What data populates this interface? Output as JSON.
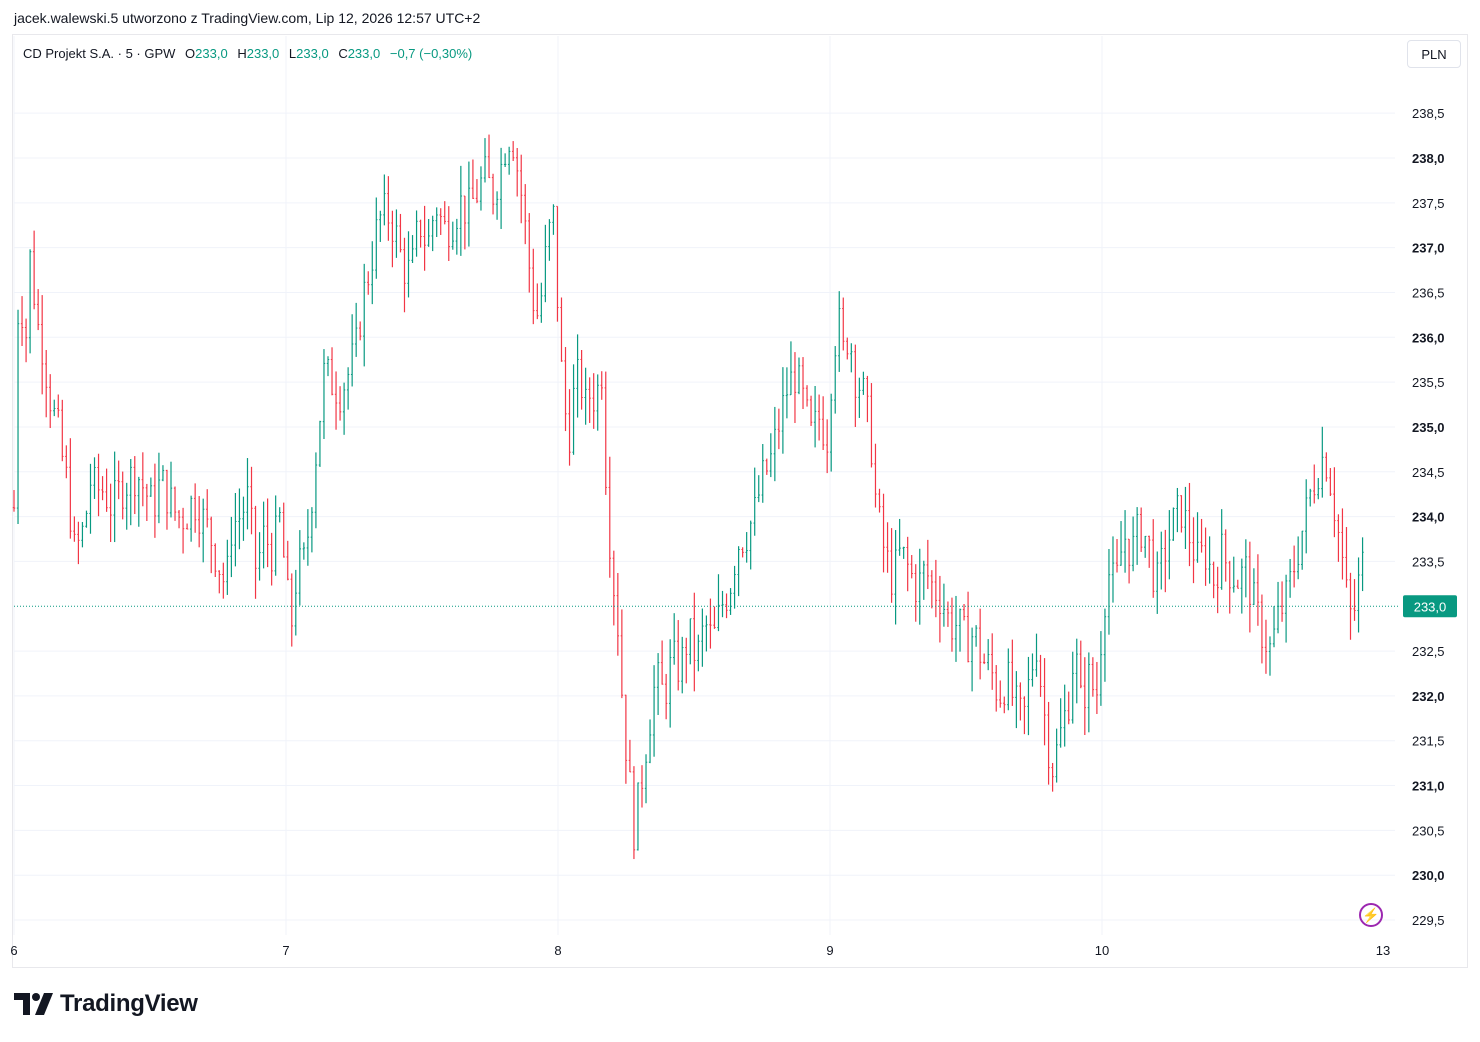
{
  "caption": "jacek.walewski.5 utworzono z TradingView.com, Lip 12, 2026 12:57 UTC+2",
  "legend": {
    "symbol": "CD Projekt S.A. · 5 · GPW",
    "o_label": "O",
    "o_value": "233,0",
    "h_label": "H",
    "h_value": "233,0",
    "l_label": "L",
    "l_value": "233,0",
    "c_label": "C",
    "c_value": "233,0",
    "change": "−0,7 (−0,30%)"
  },
  "currency": "PLN",
  "last_price_label": "233,0",
  "brand": "TradingView",
  "colors": {
    "up": "#089981",
    "down": "#f23645",
    "accent_green": "#089981",
    "grid": "#f0f3fa",
    "flash": "#9c27b0"
  },
  "icons": {
    "flash": "lightning-icon",
    "logo": "tradingview-logo-icon"
  },
  "chart_data": {
    "type": "ohlc",
    "interval": "5",
    "y_axis": {
      "range": [
        229.5,
        238.5
      ],
      "ticks": [
        {
          "v": 238.5,
          "label": "238,5",
          "bold": false
        },
        {
          "v": 238.0,
          "label": "238,0",
          "bold": true
        },
        {
          "v": 237.5,
          "label": "237,5",
          "bold": false
        },
        {
          "v": 237.0,
          "label": "237,0",
          "bold": true
        },
        {
          "v": 236.5,
          "label": "236,5",
          "bold": false
        },
        {
          "v": 236.0,
          "label": "236,0",
          "bold": true
        },
        {
          "v": 235.5,
          "label": "235,5",
          "bold": false
        },
        {
          "v": 235.0,
          "label": "235,0",
          "bold": true
        },
        {
          "v": 234.5,
          "label": "234,5",
          "bold": false
        },
        {
          "v": 234.0,
          "label": "234,0",
          "bold": true
        },
        {
          "v": 233.5,
          "label": "233,5",
          "bold": false
        },
        {
          "v": 232.5,
          "label": "232,5",
          "bold": false
        },
        {
          "v": 232.0,
          "label": "232,0",
          "bold": true
        },
        {
          "v": 231.5,
          "label": "231,5",
          "bold": false
        },
        {
          "v": 231.0,
          "label": "231,0",
          "bold": true
        },
        {
          "v": 230.5,
          "label": "230,5",
          "bold": false
        },
        {
          "v": 230.0,
          "label": "230,0",
          "bold": true
        },
        {
          "v": 229.5,
          "label": "229,5",
          "bold": false
        }
      ]
    },
    "x_axis": {
      "ticks": [
        {
          "t": 0,
          "label": "6"
        },
        {
          "t": 1,
          "label": "7"
        },
        {
          "t": 2,
          "label": "8"
        },
        {
          "t": 3,
          "label": "9"
        },
        {
          "t": 4,
          "label": "10"
        },
        {
          "t": 5,
          "label": "13"
        }
      ]
    },
    "last_close": 233.0,
    "path": [
      [
        0.0,
        234.1
      ],
      [
        0.01,
        235.8
      ],
      [
        0.02,
        236.8
      ],
      [
        0.03,
        236.3
      ],
      [
        0.04,
        235.6
      ],
      [
        0.05,
        236.6
      ],
      [
        0.06,
        236.9
      ],
      [
        0.07,
        236.7
      ],
      [
        0.08,
        236.2
      ],
      [
        0.1,
        236.0
      ],
      [
        0.12,
        235.6
      ],
      [
        0.14,
        235.2
      ],
      [
        0.16,
        235.0
      ],
      [
        0.18,
        234.6
      ],
      [
        0.2,
        234.3
      ],
      [
        0.22,
        233.6
      ],
      [
        0.24,
        233.7
      ],
      [
        0.26,
        233.9
      ],
      [
        0.28,
        234.4
      ],
      [
        0.3,
        234.3
      ],
      [
        0.33,
        234.3
      ],
      [
        0.36,
        234.1
      ],
      [
        0.39,
        234.3
      ],
      [
        0.42,
        234.4
      ],
      [
        0.45,
        234.5
      ],
      [
        0.48,
        234.3
      ],
      [
        0.51,
        234.1
      ],
      [
        0.54,
        234.4
      ],
      [
        0.57,
        234.2
      ],
      [
        0.6,
        234.0
      ],
      [
        0.63,
        234.0
      ],
      [
        0.66,
        234.2
      ],
      [
        0.69,
        234.0
      ],
      [
        0.72,
        233.8
      ],
      [
        0.75,
        233.5
      ],
      [
        0.78,
        233.2
      ],
      [
        0.8,
        233.9
      ],
      [
        0.83,
        234.0
      ],
      [
        0.86,
        234.2
      ],
      [
        0.89,
        233.4
      ],
      [
        0.92,
        233.8
      ],
      [
        0.95,
        233.6
      ],
      [
        0.98,
        234.0
      ],
      [
        1.0,
        233.2
      ],
      [
        1.02,
        232.8
      ],
      [
        1.04,
        233.4
      ],
      [
        1.07,
        233.5
      ],
      [
        1.1,
        234.4
      ],
      [
        1.12,
        235.0
      ],
      [
        1.14,
        235.6
      ],
      [
        1.17,
        235.5
      ],
      [
        1.2,
        235.4
      ],
      [
        1.23,
        235.6
      ],
      [
        1.26,
        235.9
      ],
      [
        1.28,
        236.4
      ],
      [
        1.31,
        236.8
      ],
      [
        1.34,
        237.3
      ],
      [
        1.37,
        237.4
      ],
      [
        1.4,
        237.2
      ],
      [
        1.43,
        236.8
      ],
      [
        1.46,
        236.7
      ],
      [
        1.49,
        237.3
      ],
      [
        1.52,
        237.0
      ],
      [
        1.55,
        237.5
      ],
      [
        1.58,
        237.2
      ],
      [
        1.61,
        237.3
      ],
      [
        1.64,
        237.5
      ],
      [
        1.67,
        237.4
      ],
      [
        1.7,
        237.6
      ],
      [
        1.73,
        237.8
      ],
      [
        1.76,
        237.6
      ],
      [
        1.79,
        237.9
      ],
      [
        1.81,
        238.2
      ],
      [
        1.83,
        238.3
      ],
      [
        1.85,
        237.9
      ],
      [
        1.87,
        237.5
      ],
      [
        1.89,
        236.9
      ],
      [
        1.91,
        236.4
      ],
      [
        1.93,
        236.2
      ],
      [
        1.95,
        236.8
      ],
      [
        1.97,
        237.2
      ],
      [
        1.99,
        237.4
      ],
      [
        2.0,
        236.2
      ],
      [
        2.02,
        235.3
      ],
      [
        2.04,
        234.9
      ],
      [
        2.06,
        235.4
      ],
      [
        2.08,
        235.6
      ],
      [
        2.1,
        235.2
      ],
      [
        2.12,
        235.4
      ],
      [
        2.14,
        235.3
      ],
      [
        2.16,
        235.7
      ],
      [
        2.18,
        234.2
      ],
      [
        2.2,
        233.4
      ],
      [
        2.22,
        232.8
      ],
      [
        2.24,
        231.8
      ],
      [
        2.26,
        231.1
      ],
      [
        2.28,
        230.5
      ],
      [
        2.3,
        230.9
      ],
      [
        2.33,
        231.6
      ],
      [
        2.36,
        232.2
      ],
      [
        2.39,
        232.0
      ],
      [
        2.42,
        232.4
      ],
      [
        2.45,
        232.3
      ],
      [
        2.48,
        232.7
      ],
      [
        2.51,
        232.4
      ],
      [
        2.54,
        232.8
      ],
      [
        2.57,
        232.6
      ],
      [
        2.6,
        233.0
      ],
      [
        2.63,
        233.2
      ],
      [
        2.66,
        233.7
      ],
      [
        2.69,
        233.8
      ],
      [
        2.72,
        234.0
      ],
      [
        2.75,
        234.4
      ],
      [
        2.78,
        234.6
      ],
      [
        2.81,
        235.0
      ],
      [
        2.84,
        235.4
      ],
      [
        2.87,
        235.6
      ],
      [
        2.9,
        235.3
      ],
      [
        2.93,
        234.9
      ],
      [
        2.96,
        235.1
      ],
      [
        2.99,
        234.9
      ],
      [
        3.01,
        235.8
      ],
      [
        3.03,
        236.2
      ],
      [
        3.05,
        235.8
      ],
      [
        3.07,
        236.1
      ],
      [
        3.09,
        235.6
      ],
      [
        3.12,
        235.4
      ],
      [
        3.15,
        234.9
      ],
      [
        3.17,
        234.1
      ],
      [
        3.2,
        233.6
      ],
      [
        3.23,
        233.3
      ],
      [
        3.26,
        233.6
      ],
      [
        3.29,
        233.4
      ],
      [
        3.32,
        233.2
      ],
      [
        3.35,
        233.4
      ],
      [
        3.38,
        233.2
      ],
      [
        3.41,
        233.1
      ],
      [
        3.44,
        232.8
      ],
      [
        3.47,
        232.8
      ],
      [
        3.5,
        232.6
      ],
      [
        3.53,
        232.7
      ],
      [
        3.56,
        232.4
      ],
      [
        3.59,
        232.3
      ],
      [
        3.62,
        232.0
      ],
      [
        3.65,
        232.2
      ],
      [
        3.68,
        231.9
      ],
      [
        3.71,
        231.7
      ],
      [
        3.74,
        232.3
      ],
      [
        3.76,
        232.6
      ],
      [
        3.78,
        232.0
      ],
      [
        3.8,
        231.5
      ],
      [
        3.82,
        231.2
      ],
      [
        3.85,
        231.6
      ],
      [
        3.88,
        232.0
      ],
      [
        3.9,
        232.6
      ],
      [
        3.92,
        231.9
      ],
      [
        3.95,
        232.2
      ],
      [
        3.98,
        232.0
      ],
      [
        4.0,
        232.8
      ],
      [
        4.02,
        233.4
      ],
      [
        4.05,
        233.2
      ],
      [
        4.08,
        233.8
      ],
      [
        4.11,
        233.6
      ],
      [
        4.14,
        233.9
      ],
      [
        4.17,
        233.7
      ],
      [
        4.2,
        233.2
      ],
      [
        4.23,
        233.6
      ],
      [
        4.26,
        233.9
      ],
      [
        4.29,
        234.1
      ],
      [
        4.32,
        233.8
      ],
      [
        4.35,
        233.5
      ],
      [
        4.38,
        233.6
      ],
      [
        4.41,
        233.3
      ],
      [
        4.44,
        233.6
      ],
      [
        4.47,
        233.4
      ],
      [
        4.5,
        233.3
      ],
      [
        4.53,
        233.4
      ],
      [
        4.56,
        233.0
      ],
      [
        4.59,
        232.7
      ],
      [
        4.62,
        232.5
      ],
      [
        4.65,
        232.9
      ],
      [
        4.68,
        233.1
      ],
      [
        4.71,
        233.5
      ],
      [
        4.74,
        233.9
      ],
      [
        4.77,
        234.3
      ],
      [
        4.8,
        234.6
      ],
      [
        4.82,
        234.7
      ],
      [
        4.84,
        234.4
      ],
      [
        4.86,
        234.0
      ],
      [
        4.88,
        233.6
      ],
      [
        4.9,
        233.1
      ],
      [
        4.92,
        232.8
      ],
      [
        4.94,
        233.2
      ],
      [
        4.96,
        233.5
      ]
    ]
  }
}
